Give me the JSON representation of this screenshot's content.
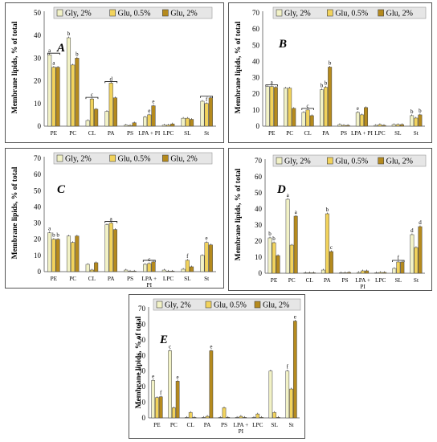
{
  "figure": {
    "y_axis_label": "Membrane lipids, % of total",
    "categories": [
      "PE",
      "PC",
      "CL",
      "PA",
      "PS",
      "LPA +\nPI",
      "LPC",
      "SL",
      "St"
    ],
    "legend": [
      "Gly, 2%",
      "Glu, 0.5%",
      "Glu, 2%"
    ],
    "colors": {
      "gly2": "#f2f2c6",
      "glu05": "#f2d35c",
      "glu2": "#b58a1d",
      "edge": "#444444"
    }
  },
  "chart_data": [
    {
      "panel": "A",
      "type": "bar",
      "ylim": [
        0,
        50
      ],
      "yticks": [
        0,
        10,
        20,
        30,
        40,
        50
      ],
      "categories": [
        "PE",
        "PC",
        "CL",
        "PA",
        "PS",
        "LPA + PI",
        "LPC",
        "SL",
        "St"
      ],
      "series": [
        {
          "name": "Gly, 2%",
          "values": [
            31.5,
            39,
            2.5,
            6.5,
            0.5,
            4,
            0.5,
            3.5,
            11
          ]
        },
        {
          "name": "Glu, 0.5%",
          "values": [
            26,
            27,
            12,
            19,
            0.3,
            5,
            0.5,
            3.5,
            10
          ]
        },
        {
          "name": "Glu, 2%",
          "values": [
            26,
            30,
            7.5,
            12.5,
            1.5,
            9,
            1,
            3,
            12.5
          ]
        }
      ],
      "annotations": [
        {
          "category": "PE",
          "labels": [
            "a",
            "a",
            ""
          ],
          "bracket": true
        },
        {
          "category": "PC",
          "labels": [
            "b",
            "",
            "b"
          ]
        },
        {
          "category": "CL",
          "labels": [
            "",
            "c",
            ""
          ],
          "bracket": true
        },
        {
          "category": "PA",
          "labels": [
            "",
            "d",
            ""
          ],
          "bracket": true
        },
        {
          "category": "LPA + PI",
          "labels": [
            "",
            "e",
            "e"
          ]
        },
        {
          "category": "St",
          "labels": [
            "",
            "f",
            ""
          ],
          "bracket": true
        }
      ]
    },
    {
      "panel": "B",
      "type": "bar",
      "ylim": [
        0,
        70
      ],
      "yticks": [
        0,
        10,
        20,
        30,
        40,
        50,
        60,
        70
      ],
      "categories": [
        "PE",
        "PC",
        "CL",
        "PA",
        "PS",
        "LPA + PI",
        "LPC",
        "SL",
        "St"
      ],
      "series": [
        {
          "name": "Gly, 2%",
          "values": [
            24.5,
            23.5,
            8.5,
            22.5,
            1,
            8.5,
            0.5,
            1,
            6.5
          ]
        },
        {
          "name": "Glu, 0.5%",
          "values": [
            24.5,
            23.5,
            10,
            24,
            0.5,
            7,
            1,
            1,
            5
          ]
        },
        {
          "name": "Glu, 2%",
          "values": [
            24,
            11,
            6.5,
            36.5,
            0.5,
            11.5,
            0.5,
            1,
            7
          ]
        }
      ],
      "annotations": [
        {
          "category": "PE",
          "labels": [
            "",
            "a",
            ""
          ],
          "bracket": true
        },
        {
          "category": "CL",
          "labels": [
            "",
            "c",
            ""
          ],
          "bracket": true
        },
        {
          "category": "PA",
          "labels": [
            "b",
            "b",
            "b"
          ]
        },
        {
          "category": "LPA + PI",
          "labels": [
            "e",
            "",
            ""
          ]
        },
        {
          "category": "St",
          "labels": [
            "b",
            "",
            "b"
          ]
        }
      ]
    },
    {
      "panel": "C",
      "type": "bar",
      "ylim": [
        0,
        70
      ],
      "yticks": [
        0,
        10,
        20,
        30,
        40,
        50,
        60,
        70
      ],
      "categories": [
        "PE",
        "PC",
        "CL",
        "PA",
        "PS",
        "LPA +\nPI",
        "LPC",
        "SL",
        "St"
      ],
      "series": [
        {
          "name": "Gly, 2%",
          "values": [
            24,
            22,
            4.5,
            29,
            1,
            4.5,
            1,
            1.5,
            10
          ]
        },
        {
          "name": "Glu, 0.5%",
          "values": [
            20,
            18,
            1,
            30,
            0.3,
            5,
            0.3,
            7,
            18
          ]
        },
        {
          "name": "Glu, 2%",
          "values": [
            20,
            22,
            5.5,
            26,
            0.3,
            6,
            0.3,
            3,
            16.5
          ]
        }
      ],
      "annotations": [
        {
          "category": "PE",
          "labels": [
            "a",
            "b",
            "b"
          ]
        },
        {
          "category": "PA",
          "labels": [
            "",
            "a",
            ""
          ],
          "bracket": true
        },
        {
          "category": "LPA +\nPI",
          "labels": [
            "",
            "c",
            ""
          ],
          "bracket": true
        },
        {
          "category": "SL",
          "labels": [
            "",
            "f",
            ""
          ]
        },
        {
          "category": "St",
          "labels": [
            "",
            "e",
            ""
          ]
        }
      ]
    },
    {
      "panel": "D",
      "type": "bar",
      "ylim": [
        0,
        70
      ],
      "yticks": [
        0,
        10,
        20,
        30,
        40,
        50,
        60,
        70
      ],
      "categories": [
        "PE",
        "PC",
        "CL",
        "PA",
        "PS",
        "LPA +\nPI",
        "LPC",
        "SL",
        "St"
      ],
      "series": [
        {
          "name": "Gly, 2%",
          "values": [
            22,
            46,
            0.3,
            2,
            0.3,
            0.5,
            0.3,
            3,
            24
          ]
        },
        {
          "name": "Glu, 0.5%",
          "values": [
            19,
            17.5,
            0.3,
            37,
            0.3,
            1.5,
            0.5,
            7,
            16
          ]
        },
        {
          "name": "Glu, 2%",
          "values": [
            11,
            35.5,
            0.3,
            13.5,
            0.5,
            1.5,
            0.5,
            7,
            29
          ]
        }
      ],
      "annotations": [
        {
          "category": "PE",
          "labels": [
            "b",
            "b",
            ""
          ]
        },
        {
          "category": "PC",
          "labels": [
            "a",
            "",
            "a"
          ]
        },
        {
          "category": "PA",
          "labels": [
            "",
            "b",
            "c"
          ]
        },
        {
          "category": "SL",
          "labels": [
            "",
            "f",
            ""
          ],
          "bracket": true
        },
        {
          "category": "St",
          "labels": [
            "d",
            "",
            "d"
          ]
        }
      ]
    },
    {
      "panel": "E",
      "type": "bar",
      "ylim": [
        0,
        70
      ],
      "yticks": [
        0,
        10,
        20,
        30,
        40,
        50,
        60,
        70
      ],
      "categories": [
        "PE",
        "PC",
        "CL",
        "PA",
        "PS",
        "LPA +\nPI",
        "LPC",
        "SL",
        "St"
      ],
      "series": [
        {
          "name": "Gly, 2%",
          "values": [
            24,
            43,
            0.3,
            0.3,
            0.3,
            0.3,
            0.3,
            30,
            30
          ]
        },
        {
          "name": "Glu, 0.5%",
          "values": [
            13,
            6.5,
            3.5,
            1,
            6.5,
            1,
            2.5,
            3.5,
            18.5
          ]
        },
        {
          "name": "Glu, 2%",
          "values": [
            13.5,
            23.5,
            0.3,
            43,
            0.3,
            0.3,
            0.3,
            0.3,
            62
          ]
        }
      ],
      "annotations": [
        {
          "category": "PE",
          "labels": [
            "e",
            "",
            "f"
          ]
        },
        {
          "category": "PC",
          "labels": [
            "c",
            "",
            "e"
          ]
        },
        {
          "category": "PA",
          "labels": [
            "",
            "",
            "e"
          ]
        },
        {
          "category": "St",
          "labels": [
            "f",
            "",
            "e"
          ]
        }
      ]
    }
  ]
}
